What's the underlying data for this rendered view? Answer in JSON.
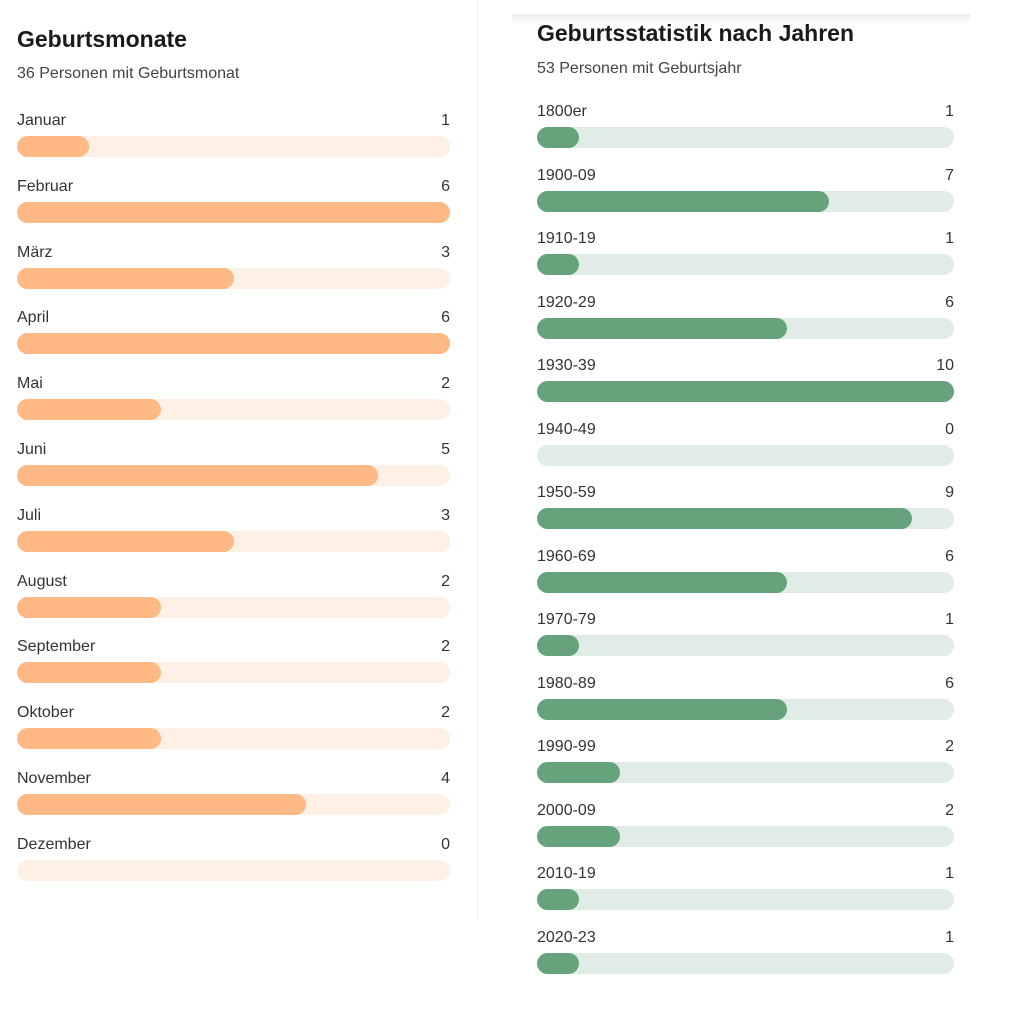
{
  "chart_data": [
    {
      "type": "bar",
      "title": "Geburtsmonate",
      "subtitle": "36 Personen mit Geburtsmonat",
      "categories": [
        "Januar",
        "Februar",
        "März",
        "April",
        "Mai",
        "Juni",
        "Juli",
        "August",
        "September",
        "Oktober",
        "November",
        "Dezember"
      ],
      "values": [
        1,
        6,
        3,
        6,
        2,
        5,
        3,
        2,
        2,
        2,
        4,
        0
      ],
      "orientation": "horizontal",
      "max": 6,
      "color": "#ffb984",
      "track_color": "#fff0e6"
    },
    {
      "type": "bar",
      "title": "Geburtsstatistik nach Jahren",
      "subtitle": "53 Personen mit Geburtsjahr",
      "categories": [
        "1800er",
        "1900-09",
        "1910-19",
        "1920-29",
        "1930-39",
        "1940-49",
        "1950-59",
        "1960-69",
        "1970-79",
        "1980-89",
        "1990-99",
        "2000-09",
        "2010-19",
        "2020-23"
      ],
      "values": [
        1,
        7,
        1,
        6,
        10,
        0,
        9,
        6,
        1,
        6,
        2,
        2,
        1,
        1
      ],
      "orientation": "horizontal",
      "max": 10,
      "color": "#66a37d",
      "track_color": "#e2ece6"
    }
  ]
}
